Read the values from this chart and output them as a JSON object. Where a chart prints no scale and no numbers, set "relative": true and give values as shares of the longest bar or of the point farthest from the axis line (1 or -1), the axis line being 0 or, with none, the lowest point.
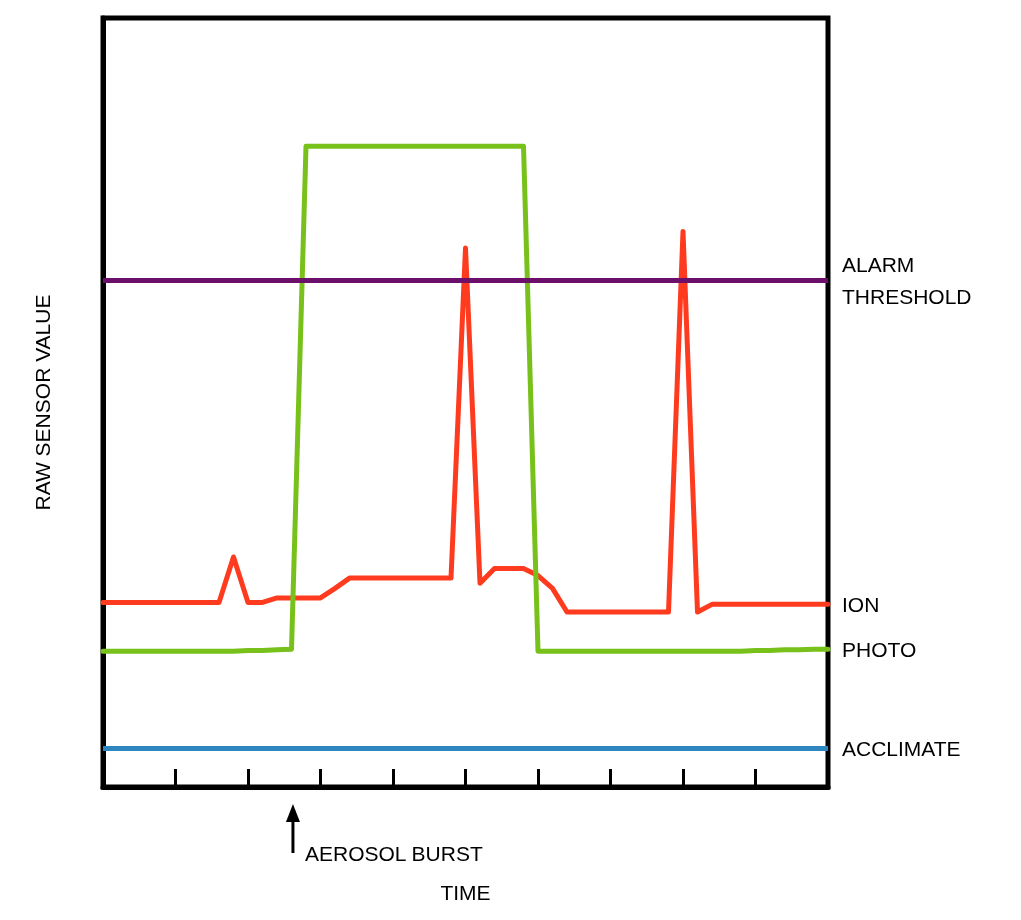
{
  "chart_data": {
    "type": "line",
    "relative": true,
    "xlabel": "TIME",
    "ylabel": "RAW SENSOR VALUE",
    "categories": [
      null,
      null,
      null,
      null,
      null,
      null,
      null,
      null,
      null,
      null,
      null,
      null,
      null,
      null,
      null,
      null,
      null,
      null,
      null,
      null,
      null,
      null,
      null,
      null,
      null,
      null,
      null,
      null,
      null,
      null,
      null,
      null,
      null,
      null,
      null,
      null,
      null,
      null,
      null,
      null,
      null,
      null,
      null,
      null,
      null,
      null,
      null,
      null,
      null,
      null,
      null
    ],
    "series": [
      {
        "name": "ION",
        "color": "#ff3b1f",
        "values": [
          0.288,
          0.288,
          0.288,
          0.288,
          0.288,
          0.288,
          0.288,
          0.288,
          0.288,
          0.359,
          0.288,
          0.288,
          0.295,
          0.295,
          0.295,
          0.295,
          0.31,
          0.326,
          0.326,
          0.326,
          0.326,
          0.326,
          0.326,
          0.326,
          0.326,
          0.841,
          0.318,
          0.341,
          0.341,
          0.341,
          0.33,
          0.31,
          0.273,
          0.273,
          0.273,
          0.273,
          0.273,
          0.273,
          0.273,
          0.273,
          0.867,
          0.273,
          0.285,
          0.285,
          0.285,
          0.285,
          0.285,
          0.285,
          0.285,
          0.285,
          0.285
        ]
      },
      {
        "name": "PHOTO",
        "color": "#77c11a",
        "values": [
          0.212,
          0.212,
          0.212,
          0.212,
          0.212,
          0.212,
          0.212,
          0.212,
          0.212,
          0.212,
          0.213,
          0.213,
          0.214,
          0.215,
          1,
          1,
          1,
          1,
          1,
          1,
          1,
          1,
          1,
          1,
          1,
          1,
          1,
          1,
          1,
          1,
          0.212,
          0.212,
          0.212,
          0.212,
          0.212,
          0.212,
          0.212,
          0.212,
          0.212,
          0.212,
          0.212,
          0.212,
          0.212,
          0.212,
          0.212,
          0.213,
          0.213,
          0.214,
          0.214,
          0.215,
          0.215
        ]
      }
    ],
    "ref_lines": [
      {
        "axis": "y",
        "value": 0.791,
        "label": "ALARM THRESHOLD",
        "color": "#6b0f6b"
      },
      {
        "axis": "y",
        "value": 0.058,
        "label": "ACCLIMATE",
        "color": "#2e86c1"
      }
    ],
    "annotations": [
      "AEROSOL BURST"
    ],
    "grid": false,
    "legend": false,
    "marker": "none",
    "line_style": "solid"
  }
}
